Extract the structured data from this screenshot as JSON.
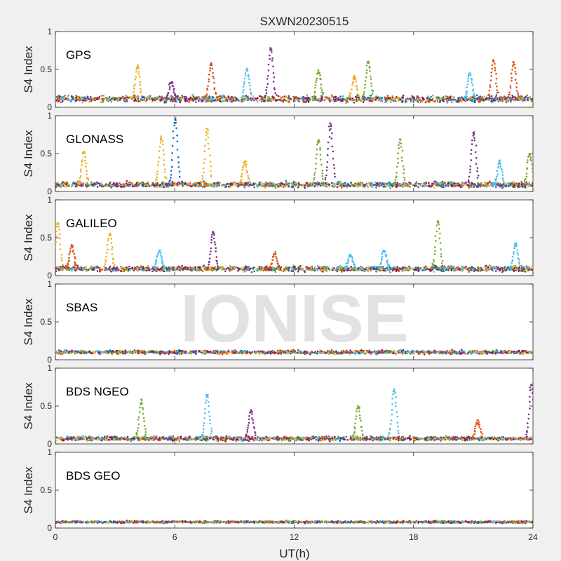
{
  "chart_data": {
    "type": "scatter",
    "title": "SXWN20230515",
    "xlabel": "UT(h)",
    "ylabel": "S4 Index",
    "xlim": [
      0,
      24
    ],
    "ylim": [
      0,
      1
    ],
    "xticks": [
      "0",
      "6",
      "12",
      "18",
      "24"
    ],
    "yticks": [
      "0",
      "0.5",
      "1"
    ],
    "watermark": "IONISE",
    "series_colors": [
      "#0072BD",
      "#D95319",
      "#EDB120",
      "#7E2F8E",
      "#77AC30",
      "#4DBEEE",
      "#A2142F"
    ],
    "panels": [
      {
        "label": "GPS",
        "baseline": 0.11,
        "noise": 0.06,
        "spikes": [
          {
            "x": 4.1,
            "y": 0.55,
            "c": 2
          },
          {
            "x": 5.8,
            "y": 0.33,
            "c": 3
          },
          {
            "x": 7.8,
            "y": 0.58,
            "c": 1
          },
          {
            "x": 9.6,
            "y": 0.5,
            "c": 5
          },
          {
            "x": 10.8,
            "y": 0.77,
            "c": 3
          },
          {
            "x": 13.2,
            "y": 0.48,
            "c": 4
          },
          {
            "x": 15.0,
            "y": 0.4,
            "c": 2
          },
          {
            "x": 15.7,
            "y": 0.6,
            "c": 4
          },
          {
            "x": 20.8,
            "y": 0.45,
            "c": 5
          },
          {
            "x": 22.0,
            "y": 0.62,
            "c": 1
          },
          {
            "x": 23.0,
            "y": 0.6,
            "c": 1
          }
        ]
      },
      {
        "label": "GLONASS",
        "baseline": 0.09,
        "noise": 0.05,
        "spikes": [
          {
            "x": 1.4,
            "y": 0.53,
            "c": 2
          },
          {
            "x": 5.3,
            "y": 0.72,
            "c": 2
          },
          {
            "x": 6.0,
            "y": 0.97,
            "c": 0
          },
          {
            "x": 7.6,
            "y": 0.83,
            "c": 2
          },
          {
            "x": 9.5,
            "y": 0.4,
            "c": 2
          },
          {
            "x": 13.2,
            "y": 0.68,
            "c": 4
          },
          {
            "x": 13.8,
            "y": 0.9,
            "c": 3
          },
          {
            "x": 17.3,
            "y": 0.68,
            "c": 4
          },
          {
            "x": 21.0,
            "y": 0.78,
            "c": 3
          },
          {
            "x": 22.3,
            "y": 0.4,
            "c": 5
          },
          {
            "x": 23.8,
            "y": 0.5,
            "c": 4
          }
        ]
      },
      {
        "label": "GALILEO",
        "baseline": 0.09,
        "noise": 0.05,
        "spikes": [
          {
            "x": 0.1,
            "y": 0.7,
            "c": 2
          },
          {
            "x": 0.8,
            "y": 0.4,
            "c": 1
          },
          {
            "x": 2.7,
            "y": 0.55,
            "c": 2
          },
          {
            "x": 5.2,
            "y": 0.34,
            "c": 5
          },
          {
            "x": 7.9,
            "y": 0.58,
            "c": 3
          },
          {
            "x": 11.0,
            "y": 0.3,
            "c": 1
          },
          {
            "x": 14.8,
            "y": 0.28,
            "c": 5
          },
          {
            "x": 16.5,
            "y": 0.33,
            "c": 5
          },
          {
            "x": 19.2,
            "y": 0.72,
            "c": 4
          },
          {
            "x": 23.1,
            "y": 0.42,
            "c": 5
          }
        ]
      },
      {
        "label": "SBAS",
        "baseline": 0.1,
        "noise": 0.035,
        "spikes": []
      },
      {
        "label": "BDS NGEO",
        "baseline": 0.07,
        "noise": 0.04,
        "spikes": [
          {
            "x": 4.3,
            "y": 0.58,
            "c": 4
          },
          {
            "x": 7.6,
            "y": 0.65,
            "c": 5
          },
          {
            "x": 9.8,
            "y": 0.45,
            "c": 3
          },
          {
            "x": 15.2,
            "y": 0.5,
            "c": 4
          },
          {
            "x": 17.0,
            "y": 0.72,
            "c": 5
          },
          {
            "x": 21.2,
            "y": 0.3,
            "c": 1
          },
          {
            "x": 23.9,
            "y": 0.78,
            "c": 3
          }
        ]
      },
      {
        "label": "BDS GEO",
        "baseline": 0.08,
        "noise": 0.02,
        "spikes": []
      }
    ]
  }
}
